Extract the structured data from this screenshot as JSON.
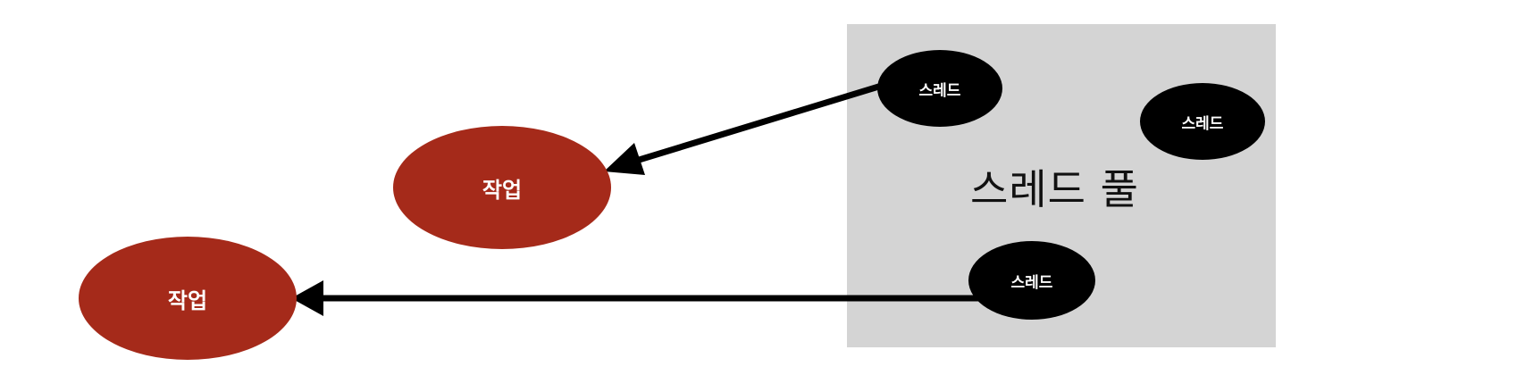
{
  "diagram": {
    "pool_label": "스레드 풀",
    "threads": [
      {
        "label": "스레드"
      },
      {
        "label": "스레드"
      },
      {
        "label": "스레드"
      }
    ],
    "tasks": [
      {
        "label": "작업"
      },
      {
        "label": "작업"
      }
    ],
    "colors": {
      "pool_background": "#d4d4d4",
      "thread_fill": "#000000",
      "task_fill": "#a52a1a",
      "arrow": "#000000"
    }
  }
}
